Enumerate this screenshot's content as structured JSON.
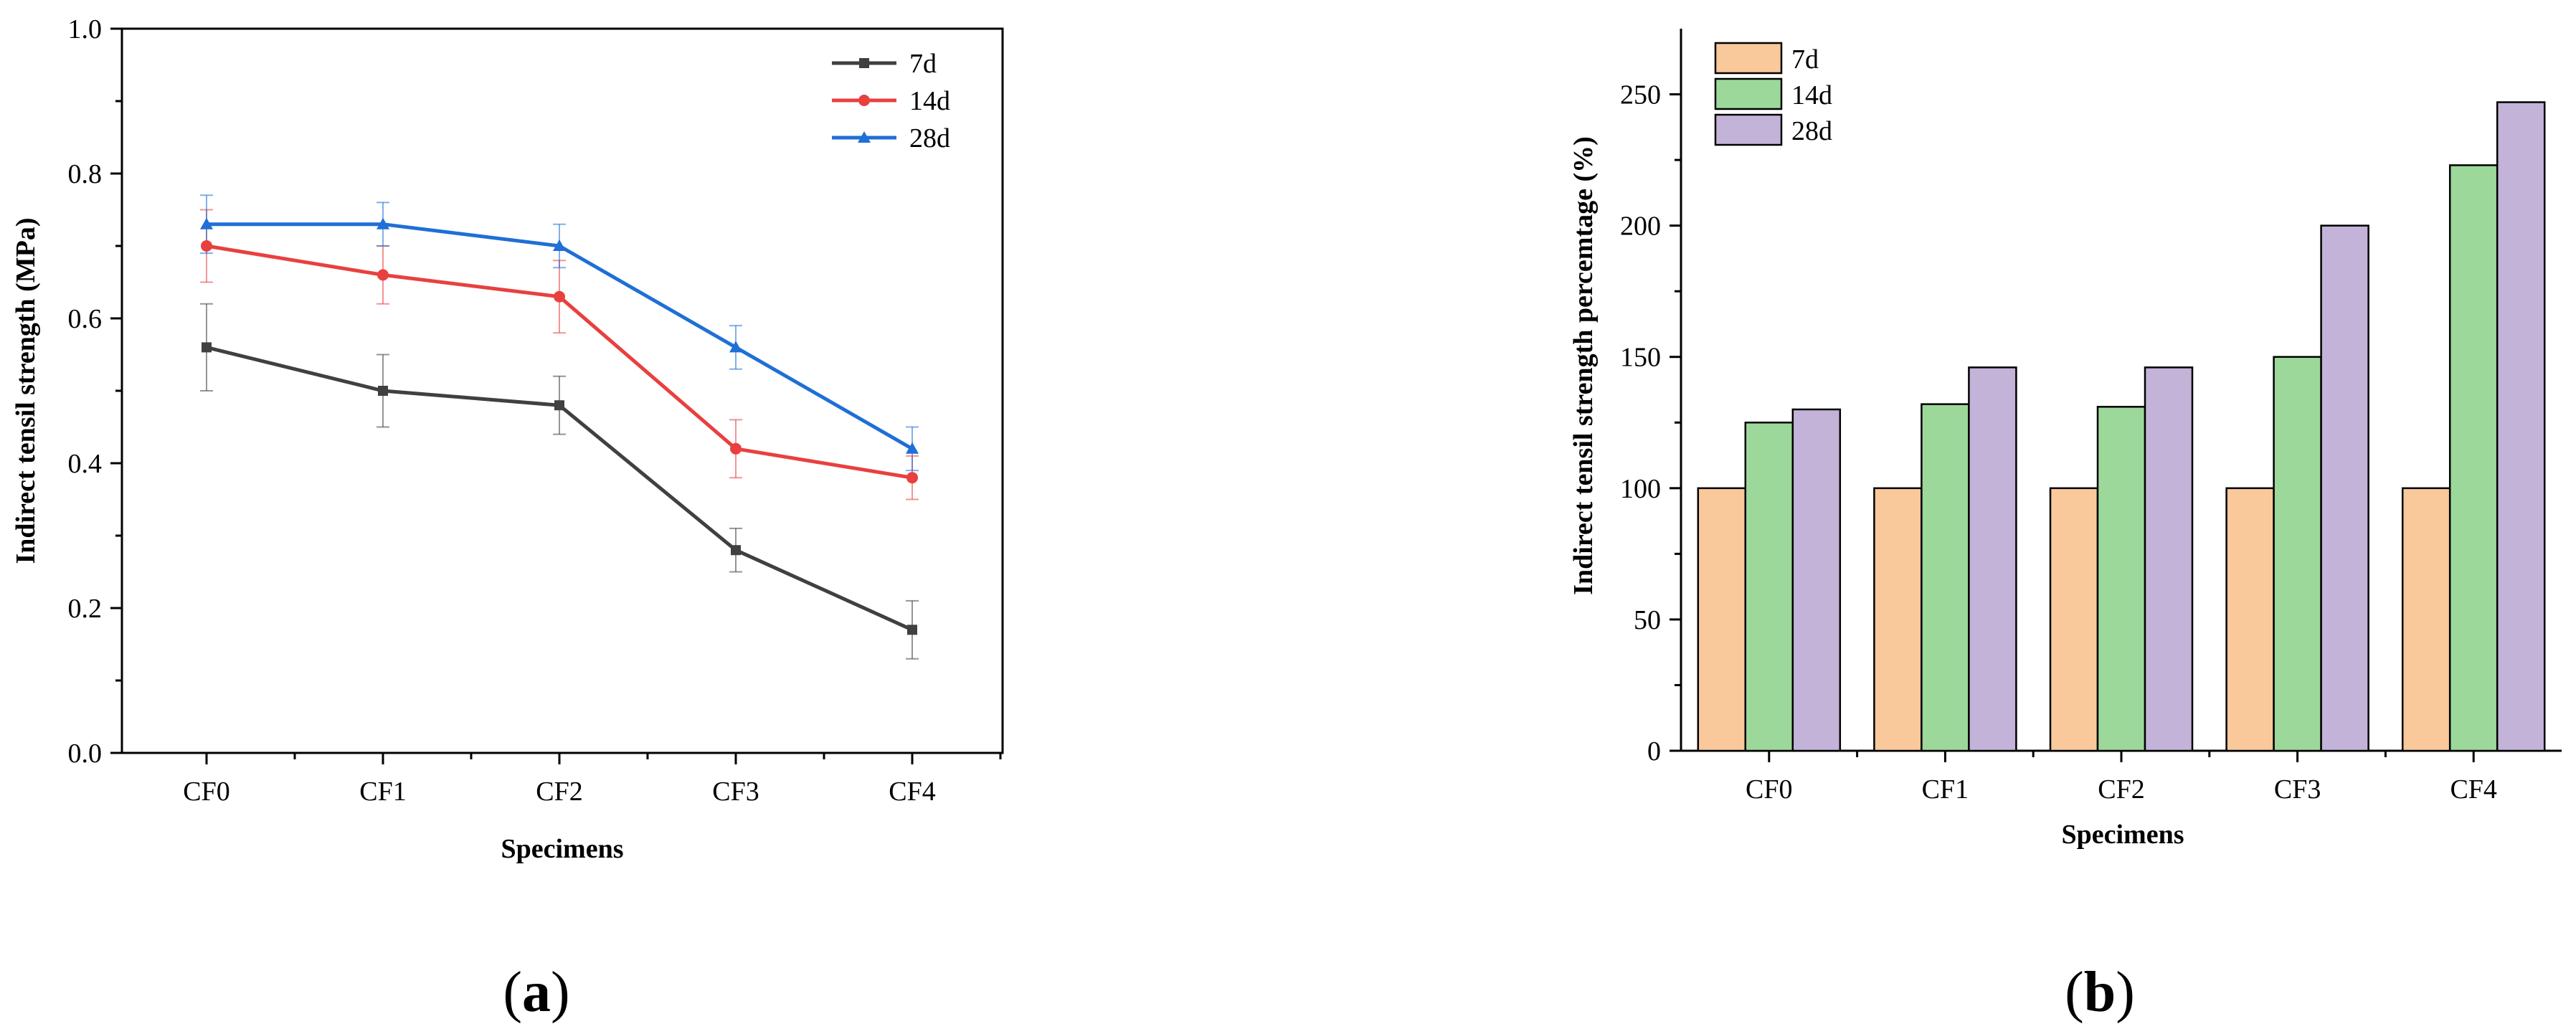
{
  "chart_data": [
    {
      "type": "line",
      "panel_label": "(a)",
      "panel_label_letter": "a",
      "categories": [
        "CF0",
        "CF1",
        "CF2",
        "CF3",
        "CF4"
      ],
      "series": [
        {
          "name": "7d",
          "color": "#404040",
          "marker": "square",
          "values": [
            0.56,
            0.5,
            0.48,
            0.28,
            0.17
          ],
          "errors": [
            0.06,
            0.05,
            0.04,
            0.03,
            0.04
          ]
        },
        {
          "name": "14d",
          "color": "#e8403f",
          "marker": "circle",
          "values": [
            0.7,
            0.66,
            0.63,
            0.42,
            0.38
          ],
          "errors": [
            0.05,
            0.04,
            0.05,
            0.04,
            0.03
          ]
        },
        {
          "name": "28d",
          "color": "#1f6fd6",
          "marker": "triangle",
          "values": [
            0.73,
            0.73,
            0.7,
            0.56,
            0.42
          ],
          "errors": [
            0.04,
            0.03,
            0.03,
            0.03,
            0.03
          ]
        }
      ],
      "xlabel": "Specimens",
      "ylabel": "Indirect tensil strength (MPa)",
      "ylim": [
        0.0,
        1.0
      ],
      "yticks": [
        "0.0",
        "0.2",
        "0.4",
        "0.6",
        "0.8",
        "1.0"
      ],
      "ytick_values": [
        0.0,
        0.2,
        0.4,
        0.6,
        0.8,
        1.0
      ],
      "legend_position": "top-right"
    },
    {
      "type": "bar",
      "panel_label": "(b)",
      "panel_label_letter": "b",
      "categories": [
        "CF0",
        "CF1",
        "CF2",
        "CF3",
        "CF4"
      ],
      "series": [
        {
          "name": "7d",
          "color": "#f9c89b",
          "values": [
            100,
            100,
            100,
            100,
            100
          ]
        },
        {
          "name": "14d",
          "color": "#9dd89b",
          "values": [
            125,
            132,
            131,
            150,
            223
          ]
        },
        {
          "name": "28d",
          "color": "#c3b3d8",
          "values": [
            130,
            146,
            146,
            200,
            247
          ]
        }
      ],
      "xlabel": "Specimens",
      "ylabel": "Indirect tensil strength percemtage (%)",
      "ylim": [
        0,
        275
      ],
      "yticks": [
        "0",
        "50",
        "100",
        "150",
        "200",
        "250"
      ],
      "ytick_values": [
        0,
        50,
        100,
        150,
        200,
        250
      ],
      "legend_position": "top-left"
    }
  ]
}
